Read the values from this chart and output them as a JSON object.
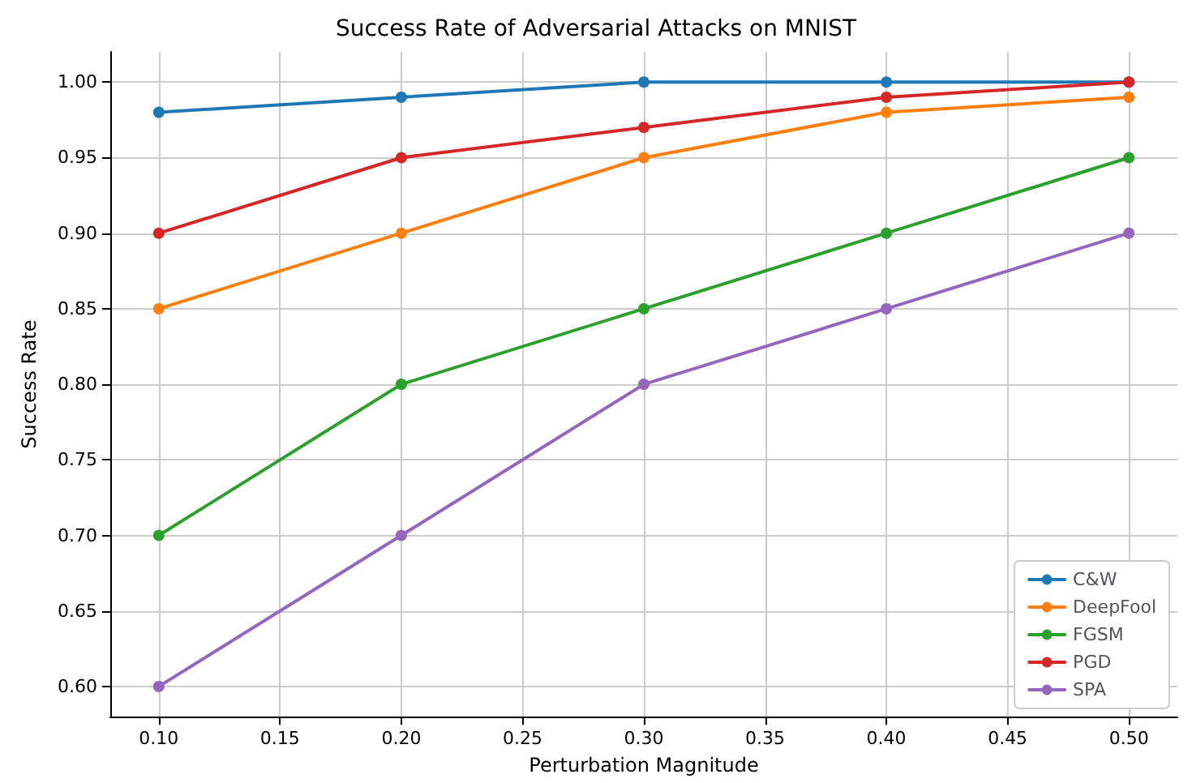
{
  "chart_data": {
    "type": "line",
    "title": "Success Rate of Adversarial Attacks on MNIST",
    "xlabel": "Perturbation Magnitude",
    "ylabel": "Success Rate",
    "x": [
      0.1,
      0.2,
      0.3,
      0.4,
      0.5
    ],
    "series": [
      {
        "name": "C&W",
        "color": "#1f77b4",
        "values": [
          0.98,
          0.99,
          1.0,
          1.0,
          1.0
        ]
      },
      {
        "name": "DeepFool",
        "color": "#ff7f0e",
        "values": [
          0.85,
          0.9,
          0.95,
          0.98,
          0.99
        ]
      },
      {
        "name": "FGSM",
        "color": "#2ca02c",
        "values": [
          0.7,
          0.8,
          0.85,
          0.9,
          0.95
        ]
      },
      {
        "name": "PGD",
        "color": "#d62728",
        "values": [
          0.9,
          0.95,
          0.97,
          0.99,
          1.0
        ]
      },
      {
        "name": "SPA",
        "color": "#9467bd",
        "values": [
          0.6,
          0.7,
          0.8,
          0.85,
          0.9
        ]
      }
    ],
    "xlim": [
      0.08,
      0.52
    ],
    "xticks": [
      {
        "value": 0.1,
        "label": "0.10"
      },
      {
        "value": 0.15,
        "label": "0.15"
      },
      {
        "value": 0.2,
        "label": "0.20"
      },
      {
        "value": 0.25,
        "label": "0.25"
      },
      {
        "value": 0.3,
        "label": "0.30"
      },
      {
        "value": 0.35,
        "label": "0.35"
      },
      {
        "value": 0.4,
        "label": "0.40"
      },
      {
        "value": 0.45,
        "label": "0.45"
      },
      {
        "value": 0.5,
        "label": "0.50"
      }
    ],
    "ylim": [
      0.58,
      1.02
    ],
    "yticks": [
      {
        "value": 0.6,
        "label": "0.60"
      },
      {
        "value": 0.65,
        "label": "0.65"
      },
      {
        "value": 0.7,
        "label": "0.70"
      },
      {
        "value": 0.75,
        "label": "0.75"
      },
      {
        "value": 0.8,
        "label": "0.80"
      },
      {
        "value": 0.85,
        "label": "0.85"
      },
      {
        "value": 0.9,
        "label": "0.90"
      },
      {
        "value": 0.95,
        "label": "0.95"
      },
      {
        "value": 1.0,
        "label": "1.00"
      }
    ],
    "grid": true,
    "legend": "bottom right",
    "marker": "circle",
    "line_style": "solid"
  }
}
